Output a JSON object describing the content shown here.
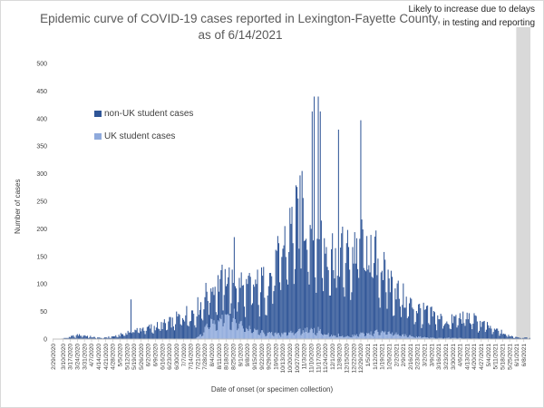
{
  "chart_data": {
    "type": "bar",
    "stacked": true,
    "title": "Epidemic curve of COVID-19 cases reported in Lexington-Fayette County, as of 6/14/2021",
    "xlabel": "Date of onset (or specimen collection)",
    "ylabel": "Number of cases",
    "ylim": [
      0,
      500
    ],
    "yticks": [
      0,
      50,
      100,
      150,
      200,
      250,
      300,
      350,
      400,
      450,
      500
    ],
    "grid": false,
    "legend_position": "upper-left inside plot",
    "annotation": "Likely to increase due to delays in testing and reporting",
    "x_start": "2/29/2020",
    "x_end": "6/14/2021",
    "x_step_days": 1,
    "tick_labels": [
      "2/29/2020",
      "3/10/2020",
      "3/17/2020",
      "3/24/2020",
      "3/31/2020",
      "4/7/2020",
      "4/14/2020",
      "4/21/2020",
      "4/28/2020",
      "5/5/2020",
      "5/12/2020",
      "5/19/2020",
      "5/26/2020",
      "6/2/2020",
      "6/9/2020",
      "6/16/2020",
      "6/23/2020",
      "6/30/2020",
      "7/7/2020",
      "7/14/2020",
      "7/21/2020",
      "7/28/2020",
      "8/4/2020",
      "8/11/2020",
      "8/18/2020",
      "8/25/2020",
      "9/1/2020",
      "9/8/2020",
      "9/15/2020",
      "9/22/2020",
      "9/29/2020",
      "10/6/2020",
      "10/13/2020",
      "10/20/2020",
      "10/27/2020",
      "11/3/2020",
      "11/10/2020",
      "11/17/2020",
      "11/24/2020",
      "12/1/2020",
      "12/8/2020",
      "12/15/2020",
      "12/22/2020",
      "12/29/2020",
      "1/5/2021",
      "1/12/2021",
      "1/19/2021",
      "1/26/2021",
      "2/2/2021",
      "2/9/2021",
      "2/16/2021",
      "2/23/2021",
      "3/2/2021",
      "3/9/2021",
      "3/16/2021",
      "3/23/2021",
      "3/30/2021",
      "4/6/2021",
      "4/13/2021",
      "4/20/2021",
      "4/27/2021",
      "5/4/2021",
      "5/11/2021",
      "5/18/2021",
      "5/25/2021",
      "6/1/2021",
      "6/8/2021"
    ],
    "shaded_region": {
      "from": "6/1/2021",
      "to": "6/14/2021",
      "color": "#d9d9d9"
    },
    "series": [
      {
        "name": "non-UK student cases",
        "color": "#2f5597",
        "weekly_avg": [
          0,
          0,
          3,
          6,
          8,
          5,
          3,
          2,
          4,
          6,
          10,
          15,
          18,
          20,
          22,
          25,
          28,
          33,
          42,
          48,
          52,
          58,
          60,
          68,
          70,
          72,
          75,
          72,
          80,
          85,
          95,
          110,
          140,
          175,
          200,
          210,
          200,
          180,
          175,
          160,
          150,
          155,
          150,
          170,
          165,
          150,
          130,
          105,
          90,
          75,
          60,
          55,
          48,
          45,
          40,
          35,
          30,
          38,
          40,
          38,
          30,
          25,
          18,
          15,
          8,
          5,
          3,
          2
        ]
      },
      {
        "name": "UK student cases",
        "color": "#8faadc",
        "weekly_avg": [
          0,
          0,
          0,
          0,
          0,
          0,
          0,
          0,
          0,
          0,
          0,
          0,
          0,
          0,
          0,
          0,
          0,
          0,
          0,
          0,
          0,
          10,
          28,
          38,
          43,
          40,
          30,
          22,
          18,
          14,
          12,
          10,
          10,
          12,
          14,
          16,
          18,
          15,
          12,
          8,
          5,
          5,
          6,
          8,
          10,
          12,
          14,
          12,
          10,
          8,
          7,
          5,
          4,
          3,
          2,
          2,
          2,
          2,
          1,
          1,
          1,
          1,
          0,
          0,
          0,
          0,
          0,
          0
        ]
      }
    ],
    "peaks": [
      {
        "date": "11/1/2020",
        "non_uk": 295,
        "uk": 10
      },
      {
        "date": "11/11/2020",
        "non_uk": 395,
        "uk": 18
      },
      {
        "date": "11/13/2020",
        "non_uk": 420,
        "uk": 20
      },
      {
        "date": "11/17/2020",
        "non_uk": 418,
        "uk": 22
      },
      {
        "date": "11/19/2020",
        "non_uk": 395,
        "uk": 18
      },
      {
        "date": "12/7/2020",
        "non_uk": 370,
        "uk": 10
      },
      {
        "date": "12/29/2020",
        "non_uk": 385,
        "uk": 12
      },
      {
        "date": "8/26/2020",
        "non_uk": 130,
        "uk": 55
      },
      {
        "date": "5/16/2020",
        "non_uk": 72,
        "uk": 0
      }
    ]
  }
}
